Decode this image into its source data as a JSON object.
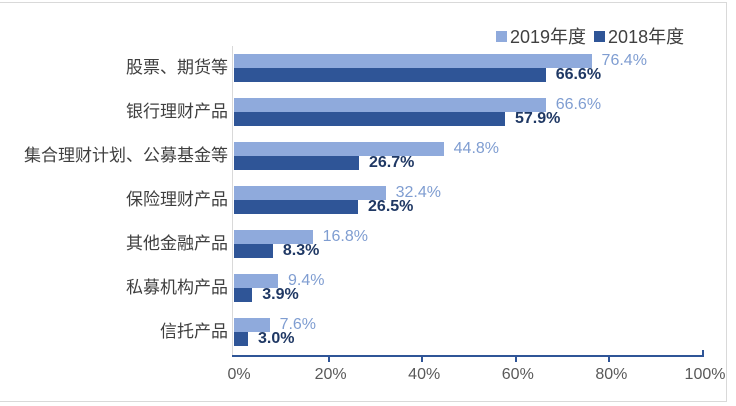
{
  "colors": {
    "bar_2019": "#8FAADC",
    "bar_2018": "#2F5597",
    "label_2019": "#7F9DD1",
    "label_2018": "#1F3864",
    "axis_line": "#2F5597",
    "axis_text": "#595959",
    "category_text": "#3f3f3f",
    "frame": "#d9d9d9"
  },
  "legend": {
    "items": [
      {
        "label": "2019年度",
        "color": "#8FAADC"
      },
      {
        "label": "2018年度",
        "color": "#2F5597"
      }
    ]
  },
  "chart_data": {
    "type": "bar",
    "orientation": "horizontal",
    "categories": [
      "股票、期货等",
      "银行理财产品",
      "集合理财计划、公募基金等",
      "保险理财产品",
      "其他金融产品",
      "私募机构产品",
      "信托产品"
    ],
    "series": [
      {
        "name": "2019年度",
        "values": [
          76.4,
          66.6,
          44.8,
          32.4,
          16.8,
          9.4,
          7.6
        ],
        "value_labels": [
          "76.4%",
          "66.6%",
          "44.8%",
          "32.4%",
          "16.8%",
          "9.4%",
          "7.6%"
        ]
      },
      {
        "name": "2018年度",
        "values": [
          66.6,
          57.9,
          26.7,
          26.5,
          8.3,
          3.9,
          3.0
        ],
        "value_labels": [
          "66.6%",
          "57.9%",
          "26.7%",
          "26.5%",
          "8.3%",
          "3.9%",
          "3.0%"
        ]
      }
    ],
    "xlabel": "",
    "ylabel": "",
    "xlim": [
      0,
      100
    ],
    "x_ticks": [
      "0%",
      "20%",
      "40%",
      "60%",
      "80%",
      "100%"
    ],
    "grid": false,
    "legend_position": "top-right"
  }
}
